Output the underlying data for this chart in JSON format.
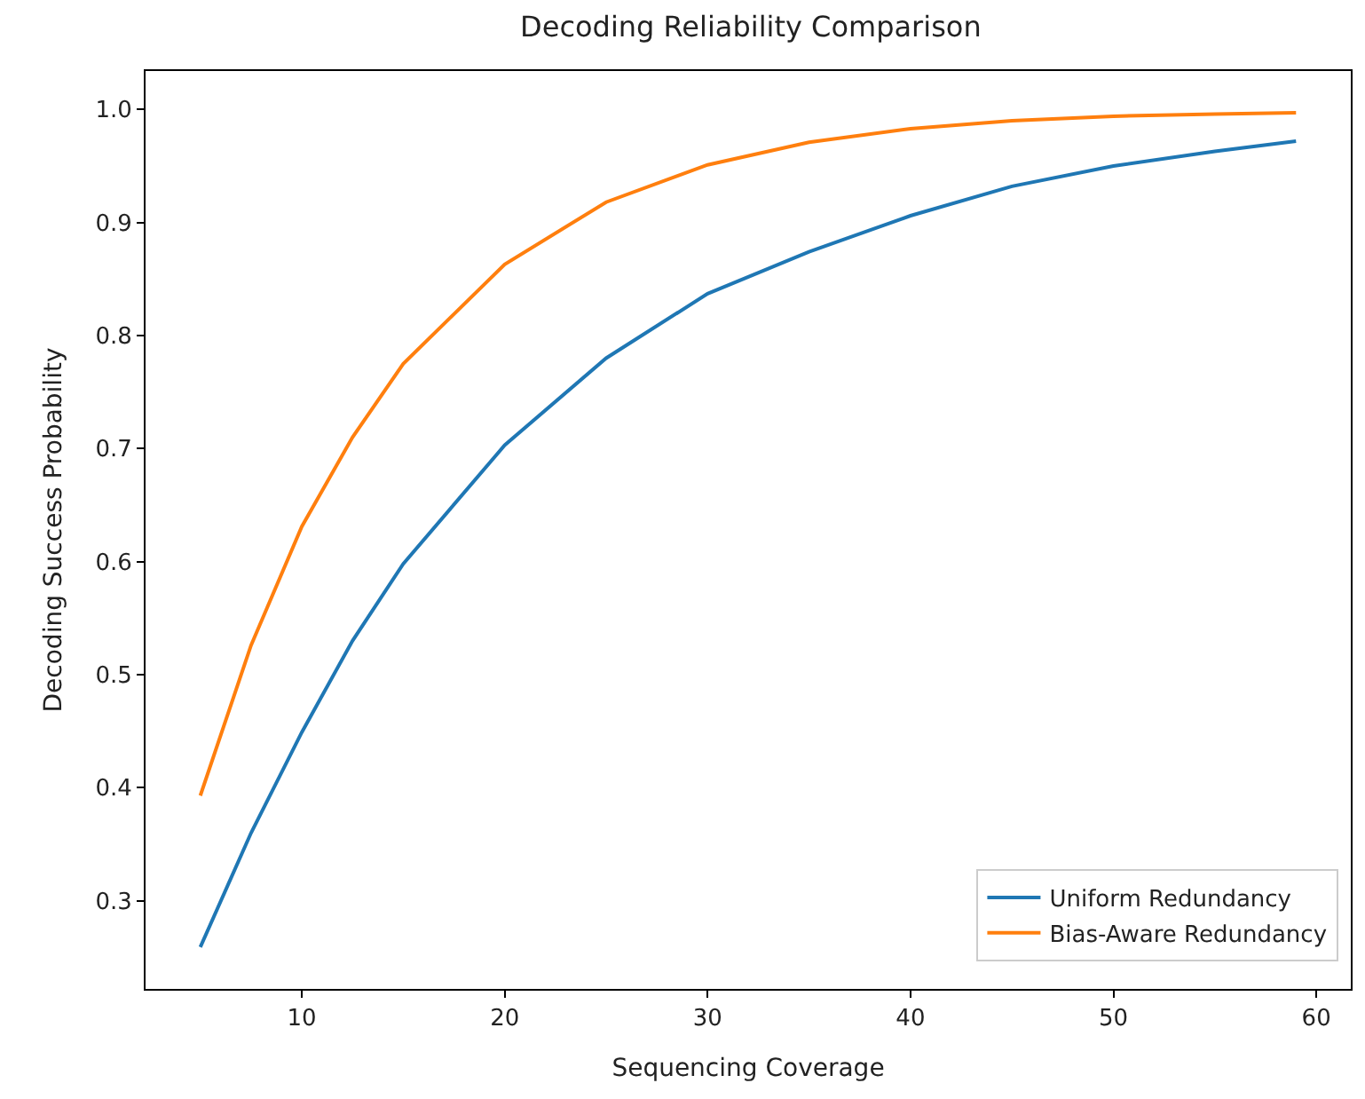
{
  "chart_data": {
    "type": "line",
    "title": "Decoding Reliability Comparison",
    "xlabel": "Sequencing Coverage",
    "ylabel": "Decoding Success Probability",
    "x": [
      5,
      7.5,
      10,
      12.5,
      15,
      20,
      25,
      30,
      35,
      40,
      45,
      50,
      55,
      59
    ],
    "series": [
      {
        "name": "Uniform Redundancy",
        "color": "#1f77b4",
        "values": [
          0.259,
          0.36,
          0.449,
          0.53,
          0.598,
          0.703,
          0.78,
          0.837,
          0.874,
          0.906,
          0.932,
          0.95,
          0.963,
          0.972
        ]
      },
      {
        "name": "Bias-Aware Redundancy",
        "color": "#ff7f0e",
        "values": [
          0.393,
          0.526,
          0.631,
          0.71,
          0.775,
          0.863,
          0.918,
          0.951,
          0.971,
          0.983,
          0.99,
          0.994,
          0.996,
          0.997
        ]
      }
    ],
    "xlim": [
      2.3,
      61.7
    ],
    "ylim": [
      0.222,
      1.034
    ],
    "xticks": [
      10,
      20,
      30,
      40,
      50,
      60
    ],
    "yticks": [
      0.3,
      0.4,
      0.5,
      0.6,
      0.7,
      0.8,
      0.9,
      {
        "value": 1,
        "label": "1.0"
      }
    ],
    "legend": "bottom right",
    "marker": "none",
    "line_style": "solid"
  }
}
